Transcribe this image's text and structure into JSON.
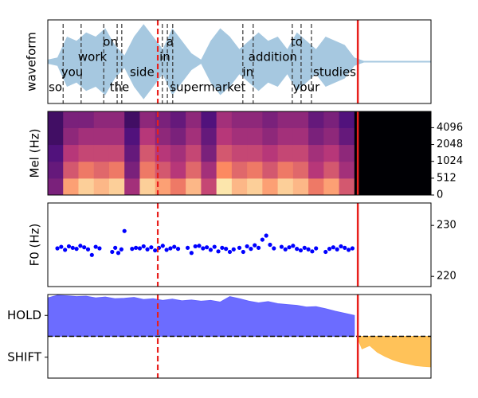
{
  "chart_data": [
    {
      "type": "waveform",
      "ylabel": "waveform",
      "xlim": [
        0,
        100
      ],
      "ylim": [
        -1,
        1
      ],
      "color": "#a6c8e0",
      "x": [
        0,
        2.5,
        5,
        7.5,
        10,
        12.5,
        15,
        17.5,
        20,
        22.5,
        25,
        27.5,
        30,
        32.5,
        35,
        37.5,
        40,
        42.5,
        45,
        47.5,
        50,
        52.5,
        55,
        57.5,
        60,
        62.5,
        65,
        67.5,
        70,
        72.5,
        75,
        77.5,
        80,
        82.5,
        85,
        87.5,
        90,
        92.5,
        95,
        97.5,
        100
      ],
      "values": [
        0.05,
        0.1,
        0.6,
        0.5,
        0.7,
        0.6,
        0.8,
        0.4,
        0.15,
        0.6,
        0.9,
        0.6,
        0.3,
        0.8,
        0.5,
        0.2,
        0.05,
        0.5,
        0.8,
        0.6,
        0.3,
        0.5,
        0.7,
        0.5,
        0.6,
        0.3,
        0.7,
        0.5,
        0.3,
        0.6,
        0.5,
        0.4,
        0.1,
        0.02,
        0.02,
        0.02,
        0.02,
        0.02,
        0.02,
        0.02,
        0.02
      ],
      "words": [
        {
          "text": "so",
          "start": 0,
          "end": 4
        },
        {
          "text": "you",
          "start": 4,
          "end": 8.7
        },
        {
          "text": "work",
          "start": 8.7,
          "end": 14.6
        },
        {
          "text": "on",
          "start": 14.6,
          "end": 18.1
        },
        {
          "text": "the",
          "start": 18.1,
          "end": 19.3
        },
        {
          "text": "side",
          "start": 19.3,
          "end": 29.9
        },
        {
          "text": "in",
          "start": 29.9,
          "end": 31.2
        },
        {
          "text": "a",
          "start": 31.2,
          "end": 32.6
        },
        {
          "text": "supermarket",
          "start": 32.6,
          "end": 50.9
        },
        {
          "text": "in",
          "start": 50.9,
          "end": 53.6
        },
        {
          "text": "addition",
          "start": 53.6,
          "end": 63.8
        },
        {
          "text": "to",
          "start": 63.8,
          "end": 66.1
        },
        {
          "text": "your",
          "start": 66.1,
          "end": 68.8
        },
        {
          "text": "studies",
          "start": 68.8,
          "end": 80.9
        }
      ],
      "cursor": 28.7,
      "end": 80.9
    },
    {
      "type": "heatmap",
      "ylabel": "Mel (Hz)",
      "xlim": [
        0,
        100
      ],
      "ylim": [
        0,
        8000
      ],
      "yscale": "symlog",
      "linthresh": 512,
      "yticks": [
        0,
        512,
        1024,
        2048,
        4096
      ],
      "y_edges": [
        0,
        512,
        1024,
        2048,
        4096,
        8000
      ],
      "z": [
        [
          0.35,
          0.8,
          0.9,
          0.85,
          0.9,
          0.45,
          0.9,
          0.8,
          0.7,
          0.85,
          0.55,
          0.95,
          0.85,
          0.9,
          0.8,
          0.9,
          0.85,
          0.7,
          0.8,
          0.6,
          0,
          0,
          0,
          0,
          0
        ],
        [
          0.3,
          0.6,
          0.7,
          0.65,
          0.7,
          0.35,
          0.7,
          0.6,
          0.5,
          0.65,
          0.45,
          0.75,
          0.65,
          0.7,
          0.6,
          0.7,
          0.65,
          0.5,
          0.6,
          0.45,
          0,
          0,
          0,
          0,
          0
        ],
        [
          0.25,
          0.5,
          0.55,
          0.55,
          0.55,
          0.3,
          0.6,
          0.5,
          0.45,
          0.55,
          0.35,
          0.6,
          0.55,
          0.55,
          0.5,
          0.55,
          0.55,
          0.45,
          0.5,
          0.4,
          0,
          0,
          0,
          0,
          0
        ],
        [
          0.2,
          0.4,
          0.45,
          0.45,
          0.45,
          0.25,
          0.5,
          0.4,
          0.35,
          0.45,
          0.3,
          0.5,
          0.45,
          0.45,
          0.4,
          0.45,
          0.45,
          0.35,
          0.4,
          0.3,
          0,
          0,
          0,
          0,
          0
        ],
        [
          0.2,
          0.35,
          0.35,
          0.4,
          0.4,
          0.2,
          0.4,
          0.35,
          0.3,
          0.4,
          0.25,
          0.45,
          0.4,
          0.4,
          0.35,
          0.4,
          0.4,
          0.3,
          0.35,
          0.25,
          0,
          0,
          0,
          0,
          0
        ]
      ],
      "cursor": 28.7,
      "end": 80.9
    },
    {
      "type": "scatter",
      "ylabel": "F0 (Hz)",
      "xlim": [
        0,
        100
      ],
      "ylim": [
        218,
        234.4
      ],
      "yticks": [
        220,
        230
      ],
      "color": "#0000ff",
      "x": [
        2.5,
        3.5,
        4.5,
        5.5,
        6.5,
        7.5,
        8.5,
        9.5,
        10.5,
        11.5,
        12.5,
        13.5,
        16.8,
        17.6,
        18.4,
        19.2,
        20,
        22,
        23,
        24,
        25,
        26,
        27,
        28,
        29,
        30,
        31,
        32,
        33,
        34,
        36.5,
        37.5,
        38.5,
        39.5,
        40.5,
        41.5,
        42.5,
        43.5,
        44.5,
        45.5,
        46.5,
        47.5,
        48.5,
        50,
        51,
        52,
        53,
        54,
        55,
        56,
        57,
        58,
        59,
        61,
        62,
        63,
        64,
        65,
        66,
        67,
        68,
        69,
        70,
        72.5,
        73.5,
        74.5,
        75.5,
        76.5,
        77.5,
        78.5,
        79.5
      ],
      "values": [
        225.5,
        225.8,
        225.2,
        225.9,
        225.6,
        225.4,
        226,
        225.7,
        225.3,
        224.2,
        225.8,
        225.5,
        224.8,
        225.6,
        224.6,
        225.3,
        228.9,
        225.4,
        225.6,
        225.5,
        225.9,
        225.3,
        225.7,
        225.1,
        225.6,
        226,
        225.2,
        225.5,
        225.8,
        225.4,
        225.6,
        224.6,
        225.9,
        226,
        225.5,
        225.7,
        225.2,
        225.8,
        224.9,
        225.6,
        225.4,
        224.8,
        225.3,
        225.6,
        224.8,
        225.9,
        225.4,
        226.1,
        225.6,
        227.2,
        228,
        226.2,
        225.5,
        225.8,
        225.3,
        225.7,
        226,
        225.4,
        225.1,
        225.6,
        225.3,
        224.9,
        225.5,
        224.8,
        225.4,
        225.7,
        225.3,
        225.9,
        225.6,
        225.2,
        225.5
      ],
      "cursor": 28.7,
      "end": 80.9
    },
    {
      "type": "area",
      "xlim": [
        0,
        100
      ],
      "ylim": [
        -1,
        1
      ],
      "yticks": [
        {
          "value": 0.5,
          "label": "HOLD"
        },
        {
          "value": -0.5,
          "label": "SHIFT"
        }
      ],
      "hline": 0,
      "series": [
        {
          "color": "#6464ff",
          "x": [
            0,
            2.5,
            5,
            7.5,
            10,
            12.5,
            15,
            17.5,
            20,
            22.5,
            25,
            27.5,
            30,
            32.5,
            35,
            37.5,
            40,
            42.5,
            45,
            47.5,
            50,
            52.5,
            55,
            57.5,
            60,
            62.5,
            65,
            67.5,
            70,
            72.5,
            75,
            77.5,
            80
          ],
          "values": [
            0.92,
            0.98,
            0.97,
            0.95,
            0.96,
            0.92,
            0.94,
            0.9,
            0.91,
            0.93,
            0.88,
            0.9,
            0.86,
            0.89,
            0.85,
            0.87,
            0.84,
            0.86,
            0.82,
            0.95,
            0.9,
            0.84,
            0.8,
            0.83,
            0.78,
            0.76,
            0.74,
            0.7,
            0.71,
            0.66,
            0.6,
            0.55,
            0.5
          ]
        },
        {
          "color": "#ffbf50",
          "x": [
            80.9,
            82,
            84,
            86,
            88,
            90,
            92,
            94,
            96,
            98,
            100
          ],
          "values": [
            -0.05,
            -0.3,
            -0.22,
            -0.38,
            -0.48,
            -0.56,
            -0.62,
            -0.66,
            -0.7,
            -0.72,
            -0.73
          ]
        }
      ],
      "cursor": 28.7,
      "end": 80.9
    }
  ]
}
